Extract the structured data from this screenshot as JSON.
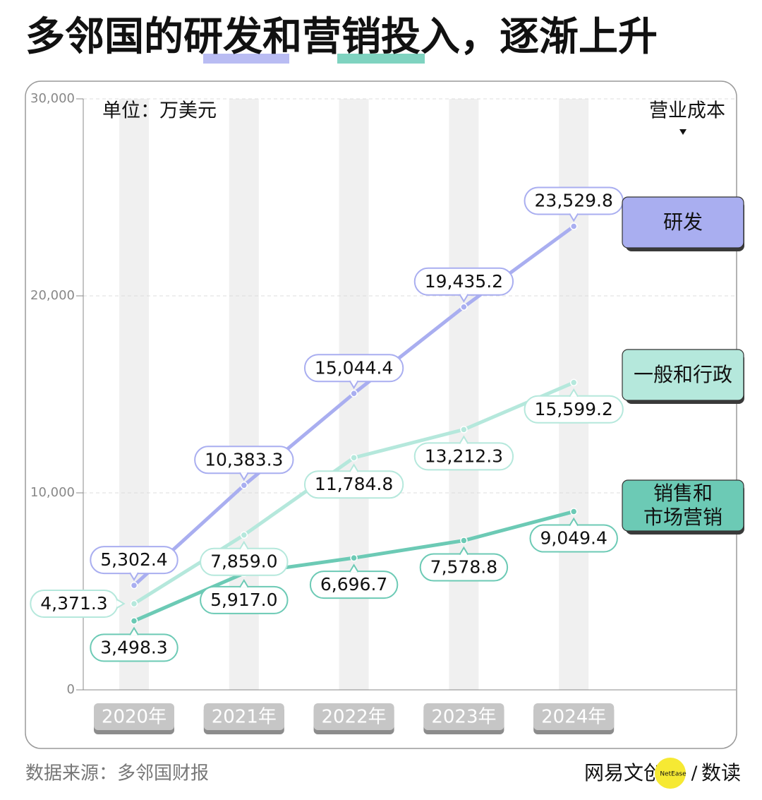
{
  "chart_data": {
    "type": "line",
    "title": "多邻国的研发和营销投入，逐渐上升",
    "unit": "单位：万美元",
    "legend_title": "营业成本",
    "categories": [
      "2020年",
      "2021年",
      "2022年",
      "2023年",
      "2024年"
    ],
    "series": [
      {
        "name": "研发",
        "color": "#a9aef0",
        "values": [
          5302.4,
          10383.3,
          15044.4,
          19435.2,
          23529.8
        ],
        "value_labels": [
          "5,302.4",
          "10,383.3",
          "15,044.4",
          "19,435.2",
          "23,529.8"
        ]
      },
      {
        "name": "一般和行政",
        "color": "#b5e8dc",
        "values": [
          4371.3,
          7859.0,
          11784.8,
          13212.3,
          15599.2
        ],
        "value_labels": [
          "4,371.3",
          "7,859.0",
          "11,784.8",
          "13,212.3",
          "15,599.2"
        ]
      },
      {
        "name": "销售和\n市场营销",
        "color": "#6ccab5",
        "values": [
          3498.3,
          5917.0,
          6696.7,
          7578.8,
          9049.4
        ],
        "value_labels": [
          "3,498.3",
          "5,917.0",
          "6,696.7",
          "7,578.8",
          "9,049.4"
        ]
      }
    ],
    "ylim": [
      0,
      30000
    ],
    "yticks": [
      0,
      {
        "value": 10000,
        "label": "10,000"
      },
      {
        "value": 20000,
        "label": "20,000"
      },
      {
        "value": 30000,
        "label": "30,000"
      }
    ],
    "grid": true,
    "source": "数据来源：多邻国财报",
    "brand": {
      "name": "网易文创",
      "badge": "NetEase",
      "separator": "/",
      "column": "数读"
    }
  }
}
